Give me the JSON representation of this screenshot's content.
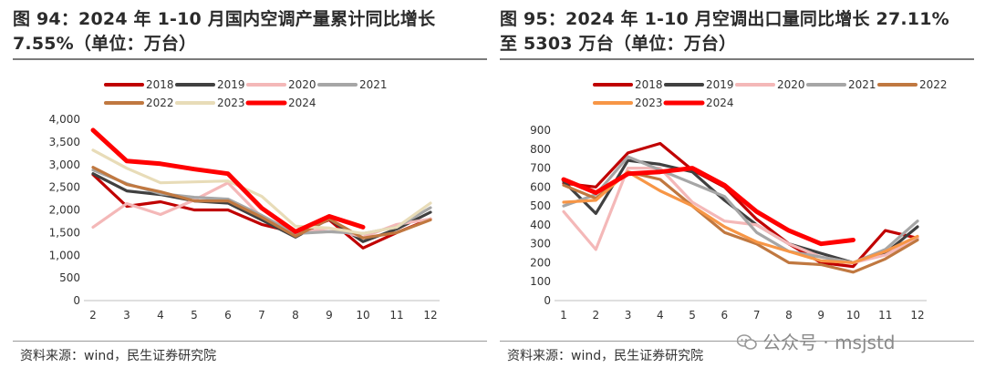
{
  "left": {
    "title_line1": "图 94：2024 年 1-10 月国内空调产量累计同比增长",
    "title_line2": "7.55%（单位：万台）",
    "source": "资料来源：wind，民生证券研究院"
  },
  "right": {
    "title_line1": "图 95：2024 年 1-10 月空调出口量同比增长 27.11%",
    "title_line2": "至 5303 万台（单位：万台）",
    "source": "资料来源：wind，民生证券研究院"
  },
  "watermark": {
    "text": "公众号 · msjstd",
    "icon": "wechat-icon"
  },
  "chart_data": [
    {
      "type": "line",
      "x": [
        2,
        3,
        4,
        5,
        6,
        7,
        8,
        9,
        10,
        11,
        12
      ],
      "ylim": [
        0,
        4000
      ],
      "yticks": [
        0,
        500,
        1000,
        1500,
        2000,
        2500,
        3000,
        3500,
        4000
      ],
      "ytick_labels": [
        "0",
        "500",
        "1,000",
        "1,500",
        "2,000",
        "2,500",
        "3,000",
        "3,500",
        "4,000"
      ],
      "xtick_labels": [
        "2",
        "3",
        "4",
        "5",
        "6",
        "7",
        "8",
        "9",
        "10",
        "11",
        "12"
      ],
      "legend_position": "top",
      "series": [
        {
          "name": "2018",
          "color": "#c00000",
          "values": [
            2780,
            2080,
            2180,
            2000,
            2000,
            1680,
            1500,
            1780,
            1160,
            1500,
            1800
          ]
        },
        {
          "name": "2019",
          "color": "#404040",
          "values": [
            2800,
            2420,
            2340,
            2200,
            2150,
            1780,
            1400,
            1800,
            1300,
            1580,
            1950
          ]
        },
        {
          "name": "2020",
          "color": "#f4b8b8",
          "values": [
            1620,
            2140,
            1900,
            2220,
            2600,
            1840,
            1480,
            1600,
            1400,
            1680,
            1800
          ]
        },
        {
          "name": "2021",
          "color": "#a6a6a6",
          "values": [
            2880,
            2580,
            2360,
            2280,
            2240,
            1880,
            1480,
            1520,
            1480,
            1620,
            2050
          ]
        },
        {
          "name": "2022",
          "color": "#c07840",
          "values": [
            2940,
            2560,
            2400,
            2200,
            2200,
            1840,
            1420,
            1800,
            1380,
            1500,
            1780
          ]
        },
        {
          "name": "2023",
          "color": "#e8dcb8",
          "values": [
            3320,
            2920,
            2600,
            2620,
            2640,
            2300,
            1640,
            1600,
            1480,
            1620,
            2150
          ]
        },
        {
          "name": "2024",
          "color": "#ff0000",
          "values": [
            3760,
            3080,
            3020,
            2900,
            2800,
            2040,
            1520,
            1860,
            1620,
            null,
            null
          ]
        }
      ]
    },
    {
      "type": "line",
      "x": [
        1,
        2,
        3,
        4,
        5,
        6,
        7,
        8,
        9,
        10,
        11,
        12
      ],
      "ylim": [
        0,
        900
      ],
      "yticks": [
        0,
        100,
        200,
        300,
        400,
        500,
        600,
        700,
        800,
        900
      ],
      "ytick_labels": [
        "0",
        "100",
        "200",
        "300",
        "400",
        "500",
        "600",
        "700",
        "800",
        "900"
      ],
      "xtick_labels": [
        "1",
        "2",
        "3",
        "4",
        "5",
        "6",
        "7",
        "8",
        "9",
        "10",
        "11",
        "12"
      ],
      "legend_position": "top",
      "series": [
        {
          "name": "2018",
          "color": "#c00000",
          "values": [
            620,
            600,
            780,
            830,
            690,
            600,
            430,
            300,
            200,
            180,
            370,
            330
          ]
        },
        {
          "name": "2019",
          "color": "#404040",
          "values": [
            630,
            460,
            740,
            720,
            680,
            530,
            400,
            300,
            250,
            200,
            250,
            390
          ]
        },
        {
          "name": "2020",
          "color": "#f4b8b8",
          "values": [
            470,
            270,
            700,
            700,
            520,
            420,
            400,
            300,
            230,
            200,
            240,
            330
          ]
        },
        {
          "name": "2021",
          "color": "#a6a6a6",
          "values": [
            500,
            560,
            760,
            690,
            620,
            550,
            360,
            260,
            230,
            200,
            270,
            420
          ]
        },
        {
          "name": "2022",
          "color": "#c07840",
          "values": [
            610,
            540,
            680,
            640,
            500,
            360,
            300,
            200,
            190,
            150,
            220,
            320
          ]
        },
        {
          "name": "2023",
          "color": "#f79646",
          "values": [
            520,
            530,
            680,
            580,
            500,
            390,
            310,
            260,
            210,
            200,
            260,
            340
          ]
        },
        {
          "name": "2024",
          "color": "#ff0000",
          "values": [
            640,
            570,
            670,
            680,
            700,
            610,
            470,
            370,
            300,
            320,
            null,
            null
          ]
        }
      ]
    }
  ]
}
